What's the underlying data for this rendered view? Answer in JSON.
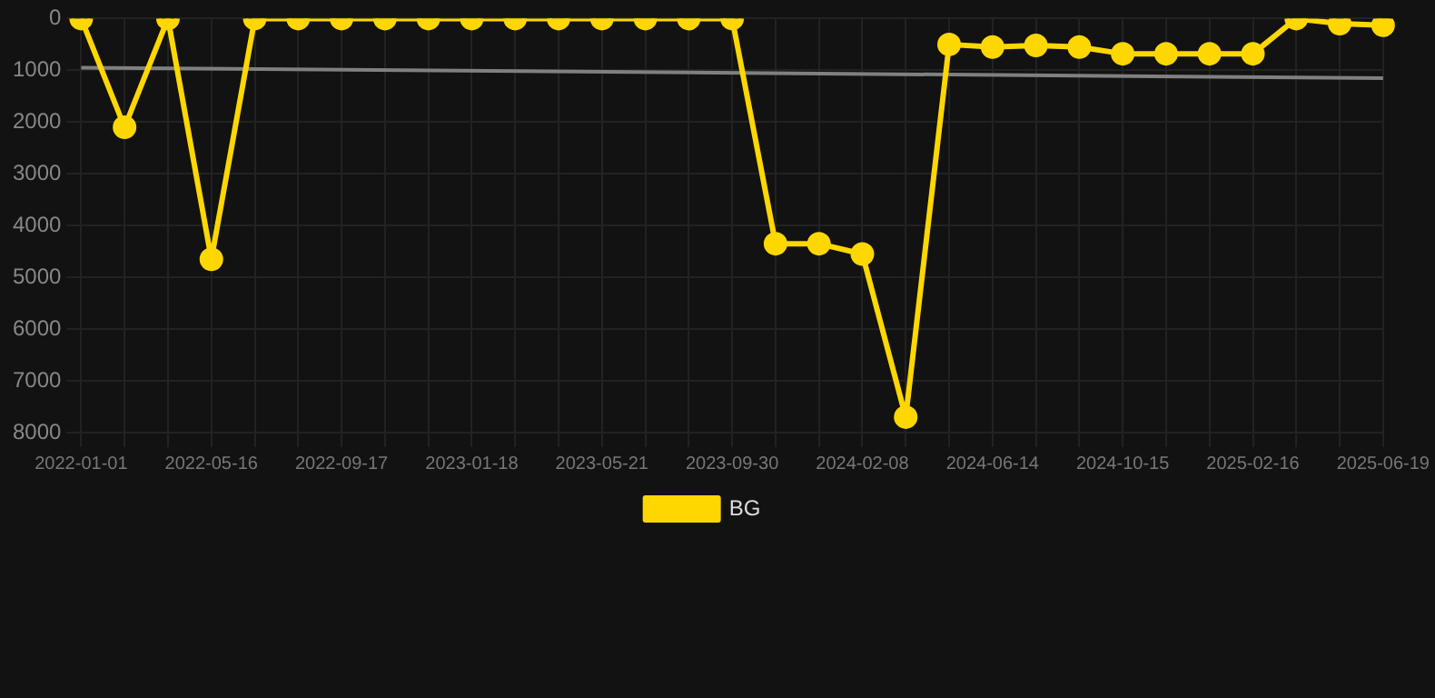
{
  "chart_data": {
    "type": "line",
    "categories": [
      "2022-01-01",
      null,
      null,
      "2022-05-16",
      null,
      null,
      "2022-09-17",
      null,
      null,
      "2023-01-18",
      null,
      null,
      "2023-05-21",
      null,
      null,
      "2023-09-30",
      null,
      null,
      "2024-02-08",
      null,
      null,
      "2024-06-14",
      null,
      null,
      "2024-10-15",
      null,
      null,
      "2025-02-16",
      null,
      null,
      "2025-06-19"
    ],
    "series": [
      {
        "name": "BG",
        "color": "#ffd700",
        "values": [
          0,
          2100,
          0,
          4650,
          0,
          0,
          0,
          0,
          0,
          0,
          0,
          0,
          0,
          0,
          0,
          0,
          4350,
          4350,
          4550,
          7700,
          500,
          550,
          520,
          550,
          680,
          680,
          680,
          680,
          0,
          100,
          130
        ]
      },
      {
        "type": "line",
        "color": "#808080",
        "values": [
          950,
          null,
          null,
          null,
          null,
          null,
          null,
          null,
          null,
          null,
          null,
          null,
          null,
          null,
          null,
          null,
          null,
          null,
          null,
          null,
          null,
          null,
          null,
          null,
          null,
          null,
          null,
          null,
          null,
          null,
          1150
        ],
        "marker": "none"
      }
    ],
    "ylim": [
      8000,
      0
    ],
    "yticks": [
      0,
      1000,
      2000,
      3000,
      4000,
      5000,
      6000,
      7000,
      8000
    ],
    "grid": true,
    "legend": "bottom",
    "marker": "circle",
    "line_style": "solid"
  }
}
